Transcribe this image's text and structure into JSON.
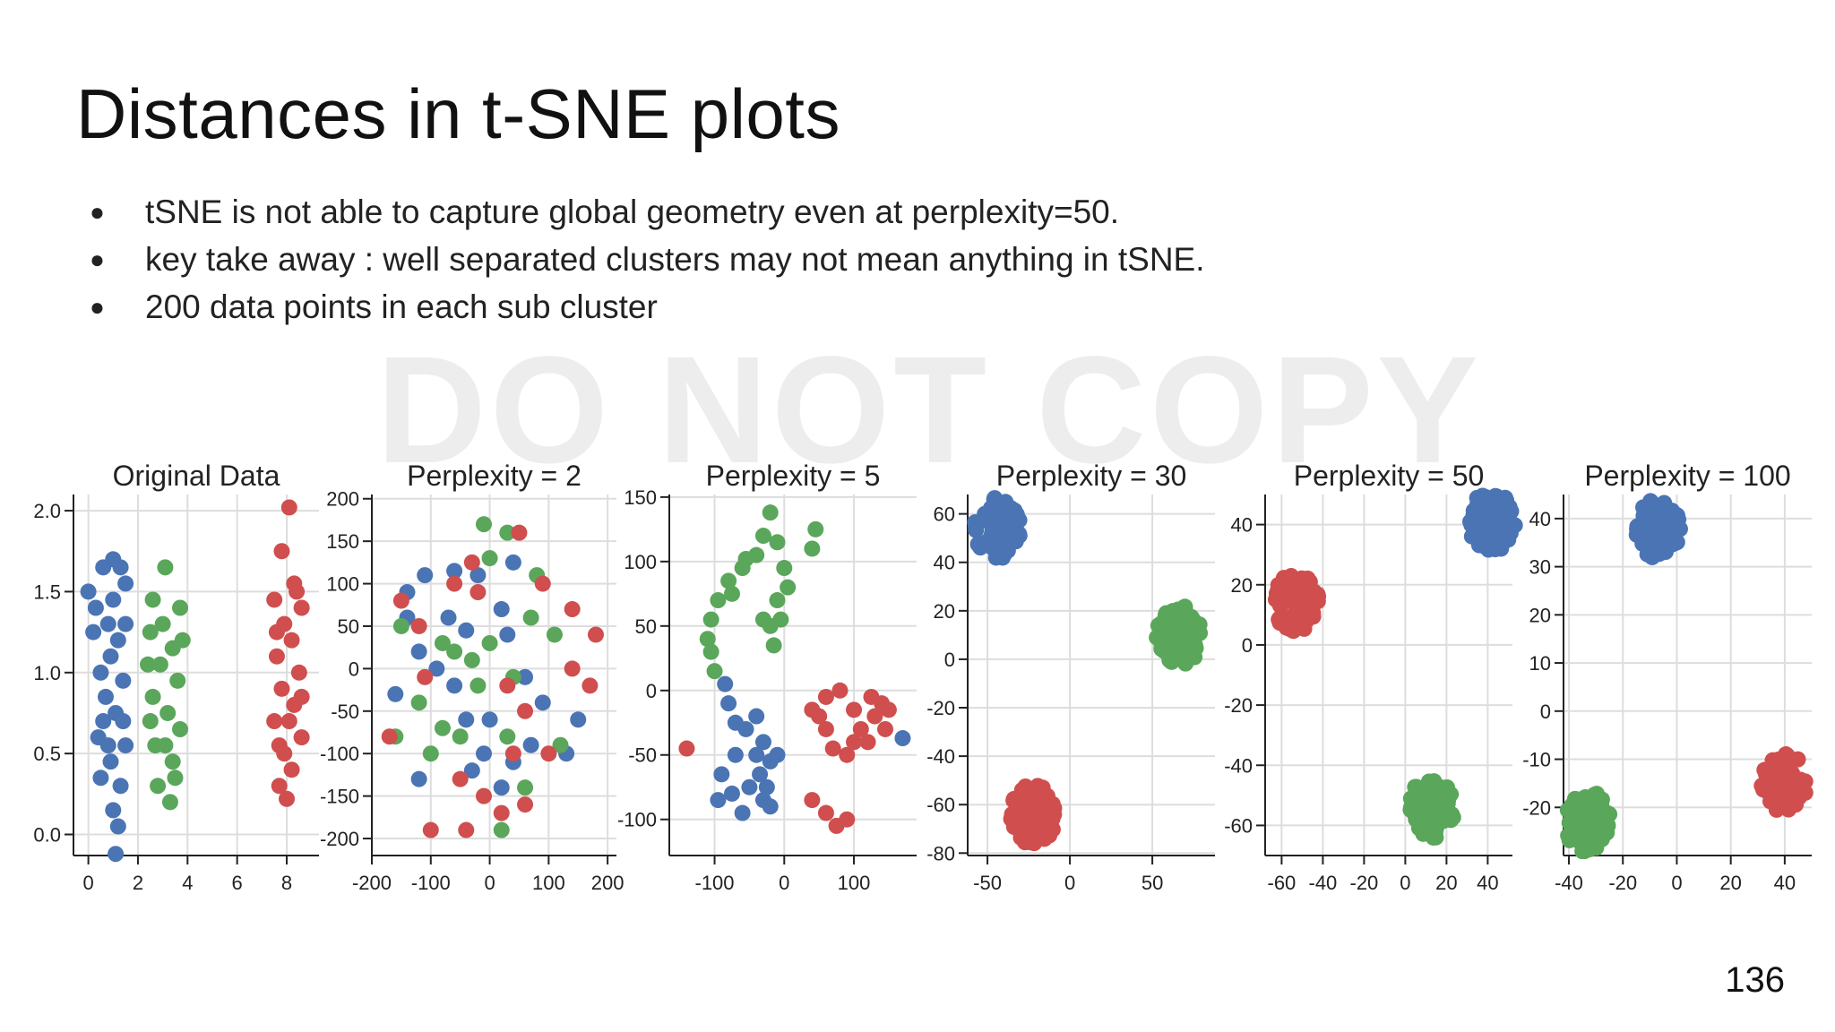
{
  "slide": {
    "title": "Distances in t-SNE plots",
    "bullets": [
      "tSNE is not able to capture global geometry even at perplexity=50.",
      "key take away : well separated clusters may not mean anything in tSNE.",
      "200 data points in each sub cluster"
    ],
    "watermark": "DO NOT COPY",
    "page_number": "136"
  },
  "colors": {
    "blue": "#4a74b4",
    "green": "#5aa65a",
    "red": "#d04e4e",
    "grid": "#dddddd",
    "axis": "#222222"
  },
  "chart_data": [
    {
      "type": "scatter",
      "title": "Original Data",
      "xlim": [
        -0.6,
        9.3
      ],
      "ylim": [
        -0.13,
        2.1
      ],
      "xticks": [
        0,
        2,
        4,
        6,
        8
      ],
      "yticks": [
        0.0,
        0.5,
        1.0,
        1.5,
        2.0
      ],
      "ytick_labels": [
        "0.0",
        "0.5",
        "1.0",
        "1.5",
        "2.0"
      ],
      "series": [
        {
          "color": "blue",
          "points": [
            [
              0.0,
              1.5
            ],
            [
              0.3,
              1.4
            ],
            [
              0.6,
              1.65
            ],
            [
              1.0,
              1.7
            ],
            [
              1.3,
              1.65
            ],
            [
              1.5,
              1.55
            ],
            [
              0.8,
              1.3
            ],
            [
              1.2,
              1.2
            ],
            [
              0.9,
              1.1
            ],
            [
              0.5,
              1.0
            ],
            [
              1.4,
              0.95
            ],
            [
              0.7,
              0.85
            ],
            [
              1.1,
              0.75
            ],
            [
              0.4,
              0.6
            ],
            [
              1.5,
              0.55
            ],
            [
              0.9,
              0.45
            ],
            [
              0.5,
              0.35
            ],
            [
              1.3,
              0.3
            ],
            [
              1.0,
              0.15
            ],
            [
              1.2,
              0.05
            ],
            [
              1.1,
              -0.12
            ],
            [
              0.2,
              1.25
            ],
            [
              1.5,
              1.3
            ],
            [
              0.6,
              0.7
            ],
            [
              1.4,
              0.7
            ],
            [
              0.8,
              0.55
            ],
            [
              1.0,
              1.45
            ]
          ]
        },
        {
          "color": "green",
          "points": [
            [
              3.1,
              1.65
            ],
            [
              2.6,
              1.45
            ],
            [
              3.7,
              1.4
            ],
            [
              2.5,
              1.25
            ],
            [
              3.4,
              1.15
            ],
            [
              2.9,
              1.05
            ],
            [
              3.6,
              0.95
            ],
            [
              2.6,
              0.85
            ],
            [
              3.2,
              0.75
            ],
            [
              3.7,
              0.65
            ],
            [
              2.7,
              0.55
            ],
            [
              3.4,
              0.45
            ],
            [
              2.8,
              0.3
            ],
            [
              3.3,
              0.2
            ],
            [
              3.0,
              1.3
            ],
            [
              2.4,
              1.05
            ],
            [
              3.8,
              1.2
            ],
            [
              3.1,
              0.55
            ],
            [
              2.5,
              0.7
            ],
            [
              3.5,
              0.35
            ]
          ]
        },
        {
          "color": "red",
          "points": [
            [
              8.1,
              2.02
            ],
            [
              7.8,
              1.75
            ],
            [
              8.3,
              1.55
            ],
            [
              7.5,
              1.45
            ],
            [
              8.6,
              1.4
            ],
            [
              7.9,
              1.3
            ],
            [
              8.2,
              1.2
            ],
            [
              7.6,
              1.1
            ],
            [
              8.5,
              1.0
            ],
            [
              7.8,
              0.9
            ],
            [
              8.3,
              0.8
            ],
            [
              7.5,
              0.7
            ],
            [
              8.6,
              0.6
            ],
            [
              7.9,
              0.5
            ],
            [
              8.2,
              0.4
            ],
            [
              7.7,
              0.3
            ],
            [
              8.0,
              0.22
            ],
            [
              8.4,
              1.5
            ],
            [
              7.6,
              1.25
            ],
            [
              8.6,
              0.85
            ],
            [
              7.7,
              0.55
            ],
            [
              8.1,
              0.7
            ]
          ]
        }
      ]
    },
    {
      "type": "scatter",
      "title": "Perplexity = 2",
      "xlim": [
        -200,
        215
      ],
      "ylim": [
        -220,
        205
      ],
      "xticks": [
        -200,
        -100,
        0,
        100,
        200
      ],
      "yticks": [
        -200,
        -150,
        -100,
        -50,
        0,
        50,
        100,
        150,
        200
      ],
      "series": [
        {
          "color": "blue",
          "points": [
            [
              -110,
              110
            ],
            [
              -60,
              115
            ],
            [
              -140,
              90
            ],
            [
              -20,
              110
            ],
            [
              40,
              125
            ],
            [
              20,
              70
            ],
            [
              -70,
              60
            ],
            [
              -140,
              60
            ],
            [
              -40,
              45
            ],
            [
              30,
              40
            ],
            [
              -120,
              20
            ],
            [
              -90,
              0
            ],
            [
              -60,
              -20
            ],
            [
              60,
              -10
            ],
            [
              -160,
              -30
            ],
            [
              -40,
              -60
            ],
            [
              0,
              -60
            ],
            [
              90,
              -40
            ],
            [
              150,
              -60
            ],
            [
              -10,
              -100
            ],
            [
              40,
              -110
            ],
            [
              130,
              -100
            ],
            [
              -120,
              -130
            ],
            [
              20,
              -140
            ],
            [
              -30,
              -120
            ],
            [
              70,
              -90
            ]
          ]
        },
        {
          "color": "green",
          "points": [
            [
              -10,
              170
            ],
            [
              30,
              160
            ],
            [
              0,
              130
            ],
            [
              80,
              110
            ],
            [
              70,
              60
            ],
            [
              -150,
              50
            ],
            [
              -80,
              30
            ],
            [
              0,
              30
            ],
            [
              -30,
              10
            ],
            [
              40,
              -10
            ],
            [
              -20,
              -20
            ],
            [
              110,
              40
            ],
            [
              -120,
              -40
            ],
            [
              -80,
              -70
            ],
            [
              -50,
              -80
            ],
            [
              30,
              -80
            ],
            [
              -100,
              -100
            ],
            [
              120,
              -90
            ],
            [
              60,
              -140
            ],
            [
              20,
              -190
            ],
            [
              -60,
              20
            ],
            [
              -160,
              -80
            ]
          ]
        },
        {
          "color": "red",
          "points": [
            [
              50,
              160
            ],
            [
              -30,
              125
            ],
            [
              -60,
              100
            ],
            [
              -20,
              90
            ],
            [
              90,
              100
            ],
            [
              -150,
              80
            ],
            [
              -120,
              50
            ],
            [
              140,
              70
            ],
            [
              180,
              40
            ],
            [
              170,
              -20
            ],
            [
              140,
              0
            ],
            [
              -110,
              -10
            ],
            [
              30,
              -20
            ],
            [
              60,
              -50
            ],
            [
              40,
              -100
            ],
            [
              -170,
              -80
            ],
            [
              -50,
              -130
            ],
            [
              60,
              -160
            ],
            [
              -40,
              -190
            ],
            [
              20,
              -170
            ],
            [
              -10,
              -150
            ],
            [
              -100,
              -190
            ],
            [
              100,
              -100
            ]
          ]
        }
      ]
    },
    {
      "type": "scatter",
      "title": "Perplexity = 5",
      "xlim": [
        -165,
        190
      ],
      "ylim": [
        -128,
        152
      ],
      "xticks": [
        -100,
        0,
        100
      ],
      "yticks": [
        -100,
        -50,
        0,
        50,
        100,
        150
      ],
      "series": [
        {
          "color": "green",
          "points": [
            [
              -20,
              138
            ],
            [
              -30,
              120
            ],
            [
              -40,
              105
            ],
            [
              -60,
              95
            ],
            [
              -80,
              85
            ],
            [
              -95,
              70
            ],
            [
              -105,
              55
            ],
            [
              -110,
              40
            ],
            [
              -105,
              30
            ],
            [
              -100,
              15
            ],
            [
              -10,
              115
            ],
            [
              0,
              95
            ],
            [
              5,
              80
            ],
            [
              -10,
              70
            ],
            [
              -20,
              50
            ],
            [
              -15,
              35
            ],
            [
              -30,
              55
            ],
            [
              45,
              125
            ],
            [
              40,
              110
            ],
            [
              -75,
              75
            ],
            [
              -55,
              102
            ],
            [
              -5,
              55
            ]
          ]
        },
        {
          "color": "blue",
          "points": [
            [
              -85,
              5
            ],
            [
              -80,
              -10
            ],
            [
              -70,
              -25
            ],
            [
              -55,
              -30
            ],
            [
              -40,
              -20
            ],
            [
              -30,
              -40
            ],
            [
              -20,
              -55
            ],
            [
              -35,
              -65
            ],
            [
              -50,
              -75
            ],
            [
              -60,
              -95
            ],
            [
              -75,
              -80
            ],
            [
              -90,
              -65
            ],
            [
              -25,
              -75
            ],
            [
              -20,
              -90
            ],
            [
              -10,
              -50
            ],
            [
              -70,
              -50
            ],
            [
              -40,
              -50
            ],
            [
              -30,
              -85
            ],
            [
              -95,
              -85
            ],
            [
              170,
              -37
            ]
          ]
        },
        {
          "color": "red",
          "points": [
            [
              -140,
              -45
            ],
            [
              40,
              -15
            ],
            [
              60,
              -5
            ],
            [
              80,
              0
            ],
            [
              100,
              -15
            ],
            [
              110,
              -30
            ],
            [
              120,
              -40
            ],
            [
              130,
              -20
            ],
            [
              140,
              -10
            ],
            [
              150,
              -15
            ],
            [
              145,
              -30
            ],
            [
              60,
              -30
            ],
            [
              70,
              -45
            ],
            [
              90,
              -50
            ],
            [
              100,
              -40
            ],
            [
              40,
              -85
            ],
            [
              60,
              -95
            ],
            [
              75,
              -105
            ],
            [
              90,
              -100
            ],
            [
              50,
              -20
            ],
            [
              125,
              -5
            ]
          ]
        }
      ]
    },
    {
      "type": "scatter",
      "title": "Perplexity = 30",
      "xlim": [
        -62,
        88
      ],
      "ylim": [
        -81,
        68
      ],
      "xticks": [
        -50,
        0,
        50
      ],
      "yticks": [
        -80,
        -60,
        -40,
        -20,
        0,
        20,
        40,
        60
      ],
      "series": [
        {
          "color": "blue",
          "cluster": {
            "center": [
              -44,
              54
            ],
            "rx": 3,
            "ry": 3
          }
        },
        {
          "color": "green",
          "cluster": {
            "center": [
              66,
              10
            ],
            "rx": 3,
            "ry": 3
          }
        },
        {
          "color": "red",
          "cluster": {
            "center": [
              -22,
              -64
            ],
            "rx": 3,
            "ry": 3
          }
        }
      ]
    },
    {
      "type": "scatter",
      "title": "Perplexity = 50",
      "xlim": [
        -68,
        52
      ],
      "ylim": [
        -70,
        50
      ],
      "xticks": [
        -60,
        -40,
        -20,
        0,
        20,
        40
      ],
      "yticks": [
        -60,
        -40,
        -20,
        0,
        20,
        40
      ],
      "series": [
        {
          "color": "blue",
          "cluster": {
            "center": [
              42,
              41
            ],
            "rx": 3,
            "ry": 3
          }
        },
        {
          "color": "red",
          "cluster": {
            "center": [
              -53,
              14
            ],
            "rx": 3,
            "ry": 3
          }
        },
        {
          "color": "green",
          "cluster": {
            "center": [
              13,
              -54
            ],
            "rx": 3,
            "ry": 3
          }
        }
      ]
    },
    {
      "type": "scatter",
      "title": "Perplexity = 100",
      "xlim": [
        -42,
        50
      ],
      "ylim": [
        -30,
        45
      ],
      "xticks": [
        -40,
        -20,
        0,
        20,
        40
      ],
      "yticks": [
        -20,
        -10,
        0,
        10,
        20,
        30,
        40
      ],
      "series": [
        {
          "color": "blue",
          "cluster": {
            "center": [
              -7,
              38
            ],
            "rx": 3,
            "ry": 3
          }
        },
        {
          "color": "green",
          "cluster": {
            "center": [
              -33,
              -23
            ],
            "rx": 3,
            "ry": 3
          }
        },
        {
          "color": "red",
          "cluster": {
            "center": [
              40,
              -15
            ],
            "rx": 3,
            "ry": 3
          }
        }
      ]
    }
  ]
}
